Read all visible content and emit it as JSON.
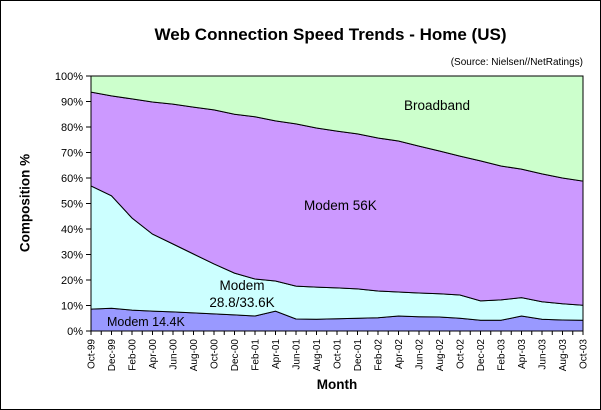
{
  "title": "Web Connection Speed Trends - Home (US)",
  "source_note": "(Source: Nielsen//NetRatings)",
  "axes": {
    "x_title": "Month",
    "y_title": "Composition %",
    "y_tick_labels": [
      "0%",
      "10%",
      "20%",
      "30%",
      "40%",
      "50%",
      "60%",
      "70%",
      "80%",
      "90%",
      "100%"
    ]
  },
  "inline_labels": {
    "broadband": "Broadband",
    "modem_56k": "Modem 56K",
    "modem_288_line1": "Modem",
    "modem_288_line2": "28.8/33.6K",
    "modem_144": "Modem 14.4K"
  },
  "chart_data": {
    "type": "area",
    "stacking": "percent_stacked_to_100",
    "title": "Web Connection Speed Trends - Home (US)",
    "xlabel": "Month",
    "ylabel": "Composition %",
    "ylim": [
      0,
      100
    ],
    "grid": false,
    "legend": "inline-area-labels",
    "x_minor_tick": "monthly",
    "x_label_interval_months": 2,
    "categories": [
      "Oct-99",
      "Dec-99",
      "Feb-00",
      "Apr-00",
      "Jun-00",
      "Aug-00",
      "Oct-00",
      "Dec-00",
      "Feb-01",
      "Apr-01",
      "Jun-01",
      "Aug-01",
      "Oct-01",
      "Dec-01",
      "Feb-02",
      "Apr-02",
      "Jun-02",
      "Aug-02",
      "Oct-02",
      "Dec-02",
      "Feb-03",
      "Apr-03",
      "Jun-03",
      "Aug-03",
      "Oct-03"
    ],
    "series": [
      {
        "name": "Modem 14.4K",
        "color": "#9999FF",
        "values": [
          8.6,
          8.9,
          8.2,
          7.8,
          7.5,
          7.1,
          6.7,
          6.3,
          5.9,
          7.8,
          4.7,
          4.6,
          4.8,
          5.0,
          5.2,
          5.9,
          5.6,
          5.5,
          5.0,
          4.2,
          4.2,
          5.9,
          4.6,
          4.3,
          4.2
        ]
      },
      {
        "name": "Modem 28.8/33.6K",
        "color": "#CCFFFF",
        "values": [
          48.3,
          44.1,
          36.1,
          30.2,
          26.6,
          23.1,
          19.6,
          16.4,
          14.5,
          11.8,
          12.9,
          12.6,
          12.1,
          11.5,
          10.5,
          9.4,
          9.3,
          9.1,
          9.1,
          7.6,
          8.0,
          7.2,
          6.9,
          6.4,
          5.9
        ]
      },
      {
        "name": "Modem 56K",
        "color": "#CC99FF",
        "values": [
          36.8,
          39.2,
          46.7,
          51.8,
          54.9,
          57.6,
          60.4,
          62.3,
          63.6,
          62.8,
          63.6,
          62.4,
          61.5,
          60.8,
          60.0,
          59.2,
          57.6,
          56.0,
          54.5,
          54.9,
          52.5,
          50.4,
          50.1,
          49.3,
          48.7
        ]
      },
      {
        "name": "Broadband",
        "color": "#CCFFCC",
        "values": [
          6.3,
          7.8,
          9.0,
          10.2,
          11.0,
          12.2,
          13.3,
          15.0,
          16.0,
          17.6,
          18.8,
          20.4,
          21.6,
          22.7,
          24.3,
          25.5,
          27.5,
          29.4,
          31.4,
          33.3,
          35.3,
          36.5,
          38.4,
          40.0,
          41.2
        ]
      }
    ],
    "outline_color": "#000000",
    "background_color": "#FFFFFF"
  }
}
